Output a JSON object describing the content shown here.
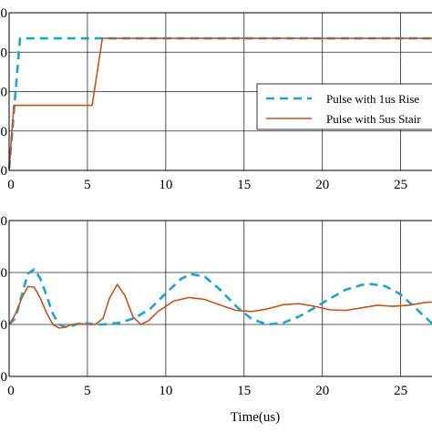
{
  "chart_data": [
    {
      "type": "line",
      "xlim": [
        0,
        27
      ],
      "ylim": [
        0,
        4
      ],
      "grid": true,
      "x_ticks": [
        0,
        5,
        10,
        15,
        20,
        25
      ],
      "x_tick_labels": [
        "0",
        "5",
        "10",
        "15",
        "20",
        "25"
      ],
      "y_tick_labels": [
        "0",
        "0",
        "0",
        "0",
        "0"
      ],
      "legend_position": "right",
      "series": [
        {
          "name": "Pulse with 1us Rise",
          "color": "#1aa3d9",
          "dash": "dashed",
          "x": [
            0,
            0.7,
            27
          ],
          "y": [
            0.05,
            3.35,
            3.35
          ]
        },
        {
          "name": "Pulse with 5us Stair",
          "color": "#c8531a",
          "dash": "solid",
          "x": [
            0,
            0.3,
            5.3,
            5.95,
            27
          ],
          "y": [
            0,
            1.65,
            1.65,
            3.35,
            3.35
          ]
        }
      ]
    },
    {
      "type": "line",
      "xlim": [
        0,
        27
      ],
      "ylim": [
        0,
        3
      ],
      "grid": true,
      "x_ticks": [
        0,
        5,
        10,
        15,
        20,
        25
      ],
      "x_tick_labels": [
        "0",
        "5",
        "10",
        "15",
        "20",
        "25"
      ],
      "y_tick_labels": [
        "0",
        "0",
        "0",
        "0"
      ],
      "xlabel": "Time(us)",
      "series": [
        {
          "name": "Pulse with 1us Rise",
          "color": "#1aa3d9",
          "dash": "dashed",
          "x": [
            0,
            0.4,
            0.8,
            1.2,
            1.6,
            2.0,
            2.4,
            2.8,
            3.2,
            3.6,
            4.0,
            4.5,
            5.0,
            5.5,
            6.0,
            7.0,
            8.0,
            9.0,
            10.0,
            11.0,
            11.6,
            12.5,
            13.5,
            14.5,
            15.5,
            16.5,
            17.5,
            18.5,
            19.5,
            20.5,
            21.5,
            22.5,
            23.0,
            24.0,
            25.0,
            26.0,
            27.0
          ],
          "y": [
            1.0,
            1.12,
            1.55,
            1.98,
            2.06,
            1.88,
            1.55,
            1.2,
            1.0,
            0.95,
            0.97,
            1.02,
            1.02,
            1.0,
            1.0,
            1.03,
            1.12,
            1.3,
            1.6,
            1.88,
            1.97,
            1.92,
            1.66,
            1.35,
            1.1,
            1.0,
            1.03,
            1.15,
            1.32,
            1.5,
            1.67,
            1.76,
            1.78,
            1.74,
            1.58,
            1.3,
            1.02
          ]
        },
        {
          "name": "Pulse with 5us Stair",
          "color": "#c8531a",
          "dash": "solid",
          "x": [
            0,
            0.4,
            0.8,
            1.2,
            1.6,
            2.0,
            2.4,
            2.8,
            3.2,
            3.6,
            4.0,
            4.5,
            5.0,
            5.5,
            6.0,
            6.4,
            6.9,
            7.4,
            7.9,
            8.4,
            8.9,
            9.5,
            10.5,
            11.5,
            12.5,
            13.5,
            14.5,
            15.5,
            16.5,
            17.5,
            18.5,
            19.5,
            20.5,
            21.5,
            22.5,
            23.5,
            24.5,
            25.5,
            26.5,
            27.0
          ],
          "y": [
            1.0,
            1.2,
            1.5,
            1.73,
            1.72,
            1.5,
            1.22,
            1.0,
            0.93,
            0.95,
            1.0,
            1.02,
            1.0,
            1.0,
            1.12,
            1.5,
            1.77,
            1.55,
            1.15,
            1.0,
            1.07,
            1.25,
            1.45,
            1.52,
            1.48,
            1.37,
            1.27,
            1.25,
            1.3,
            1.38,
            1.4,
            1.35,
            1.28,
            1.27,
            1.32,
            1.37,
            1.35,
            1.37,
            1.42,
            1.43
          ]
        }
      ]
    }
  ]
}
